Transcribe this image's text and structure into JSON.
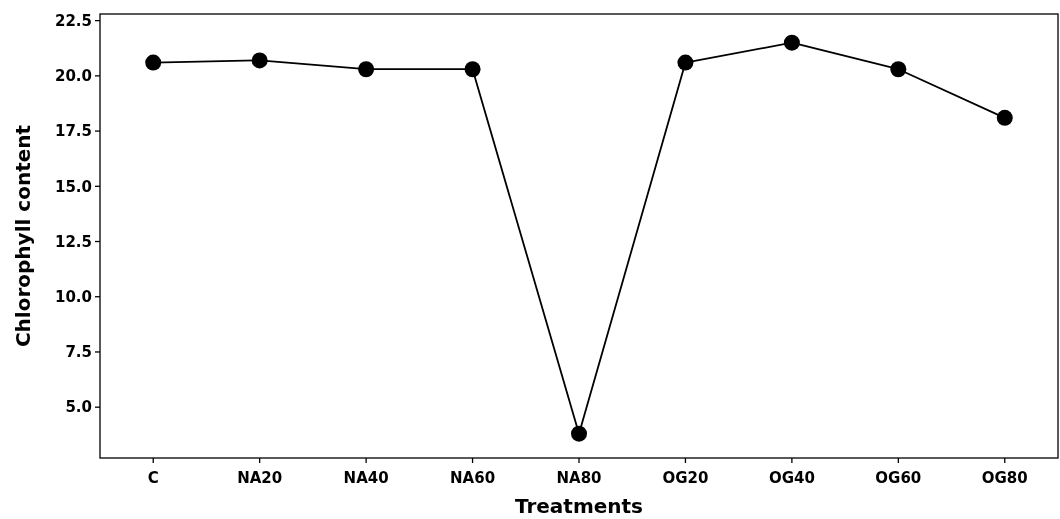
{
  "chart_data": {
    "type": "line",
    "xlabel": "Treatments",
    "ylabel": "Chlorophyll content",
    "categories": [
      "C",
      "NA20",
      "NA40",
      "NA60",
      "NA80",
      "OG20",
      "OG40",
      "OG60",
      "OG80"
    ],
    "series": [
      {
        "color": "#000000",
        "values": [
          20.6,
          20.7,
          20.3,
          20.3,
          3.8,
          20.6,
          21.5,
          20.3,
          18.1
        ]
      }
    ],
    "ylim": [
      2.7,
      22.8
    ],
    "yticks": [
      {
        "value": 5,
        "label": "5.0"
      },
      7.5,
      {
        "value": 10,
        "label": "10.0"
      },
      12.5,
      {
        "value": 15,
        "label": "15.0"
      },
      17.5,
      {
        "value": 20,
        "label": "20.0"
      },
      22.5
    ],
    "marker": "circle",
    "line_style": "solid"
  }
}
